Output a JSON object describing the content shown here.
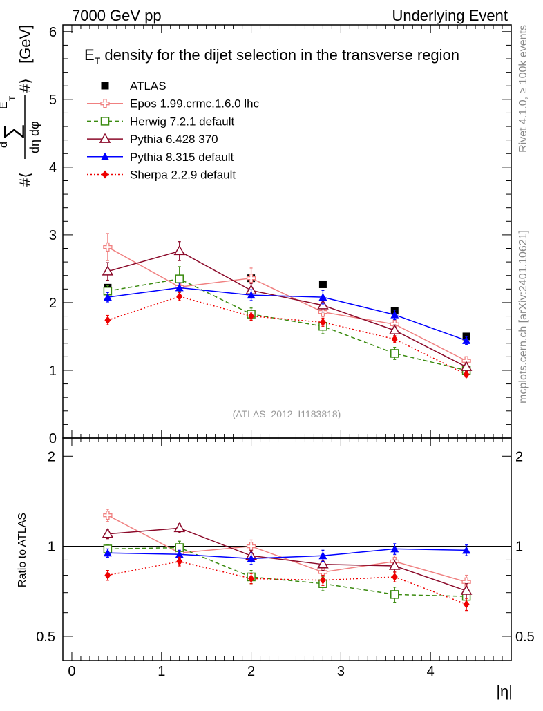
{
  "header": {
    "left": "7000 GeV pp",
    "right": "Underlying Event"
  },
  "side_labels": {
    "rivet": "Rivet 4.1.0, ≥ 100k events",
    "mcplots": "mcplots.cern.ch [arXiv:2401.10621]"
  },
  "chart_data": [
    {
      "type": "line",
      "title_main": "E",
      "title_sub": "T",
      "title_rest": " density  for the dijet selection in the transverse region",
      "ylabel": "#⟨ d∑E_T / dη dφ ⟩ [GeV]",
      "ylabel_parts": {
        "prefix": "#⟨",
        "d": "d",
        "sum": "∑",
        "E": "E",
        "T": "T",
        "hash": "#⟩",
        "den": "dη dφ",
        "unit": "[GeV]"
      },
      "analysis_id": "(ATLAS_2012_I1183818)",
      "xlim": [
        -0.1,
        4.9
      ],
      "ylim": [
        0,
        6.1
      ],
      "y_ticks": [
        0,
        1,
        2,
        3,
        4,
        5,
        6
      ],
      "x": [
        0.4,
        1.2,
        2.0,
        2.8,
        3.6,
        4.4
      ],
      "series": [
        {
          "name": "ATLAS",
          "color": "#000000",
          "marker": "square-filled",
          "dash": "none",
          "line": false,
          "values": [
            2.22,
            2.35,
            2.36,
            2.27,
            1.88,
            1.5
          ],
          "errors": [
            0.03,
            0.03,
            0.03,
            0.03,
            0.02,
            0.02
          ]
        },
        {
          "name": "Epos 1.99.crmc.1.6.0 lhc",
          "color": "#f08080",
          "marker": "cross-open",
          "dash": "none",
          "line": true,
          "values": [
            2.82,
            2.23,
            2.36,
            1.86,
            1.68,
            1.14
          ],
          "errors": [
            0.2,
            0.06,
            0.15,
            0.07,
            0.07,
            0.06
          ]
        },
        {
          "name": "Herwig 7.2.1 default",
          "color": "#3a8a0f",
          "marker": "square-open",
          "dash": "6,4",
          "line": true,
          "values": [
            2.17,
            2.35,
            1.83,
            1.65,
            1.25,
            1.0
          ],
          "errors": [
            0.08,
            0.18,
            0.09,
            0.11,
            0.09,
            0.06
          ]
        },
        {
          "name": "Pythia 6.428 370",
          "color": "#8b0a2a",
          "marker": "triangle-open",
          "dash": "none",
          "line": true,
          "values": [
            2.46,
            2.76,
            2.18,
            1.96,
            1.59,
            1.05
          ],
          "errors": [
            0.13,
            0.14,
            0.1,
            0.1,
            0.08,
            0.06
          ]
        },
        {
          "name": "Pythia 8.315 default",
          "color": "#0000ff",
          "marker": "triangle-filled",
          "dash": "none",
          "line": true,
          "values": [
            2.08,
            2.22,
            2.11,
            2.08,
            1.82,
            1.44
          ],
          "errors": [
            0.07,
            0.07,
            0.08,
            0.1,
            0.07,
            0.06
          ]
        },
        {
          "name": "Sherpa 2.2.9 default",
          "color": "#ee0000",
          "marker": "diamond-filled",
          "dash": "2,3",
          "line": true,
          "values": [
            1.74,
            2.09,
            1.8,
            1.71,
            1.46,
            0.94
          ],
          "errors": [
            0.07,
            0.06,
            0.06,
            0.06,
            0.05,
            0.04
          ]
        }
      ]
    },
    {
      "type": "line",
      "ylabel": "Ratio to ATLAS",
      "xlabel": "|η|",
      "xlim": [
        -0.1,
        4.9
      ],
      "ylim": [
        0.415,
        2.3
      ],
      "yscale": "log",
      "y_ticks": [
        0.5,
        1,
        2
      ],
      "y_tick_labels": [
        "0.5",
        "1",
        "2"
      ],
      "x_ticks": [
        0,
        1,
        2,
        3,
        4
      ],
      "x_tick_labels": [
        "0",
        "1",
        "2",
        "3",
        "4"
      ],
      "reference_line": 1,
      "x": [
        0.4,
        1.2,
        2.0,
        2.8,
        3.6,
        4.4
      ],
      "series": [
        {
          "name": "Epos 1.99.crmc.1.6.0 lhc",
          "color": "#f08080",
          "marker": "cross-open",
          "dash": "none",
          "values": [
            1.27,
            0.95,
            1.0,
            0.82,
            0.89,
            0.76
          ],
          "errors": [
            0.06,
            0.03,
            0.05,
            0.03,
            0.04,
            0.04
          ]
        },
        {
          "name": "Herwig 7.2.1 default",
          "color": "#3a8a0f",
          "marker": "square-open",
          "dash": "6,4",
          "line": true,
          "values": [
            0.98,
            0.99,
            0.79,
            0.75,
            0.69,
            0.68
          ],
          "errors": [
            0.03,
            0.05,
            0.04,
            0.04,
            0.04,
            0.04
          ]
        },
        {
          "name": "Pythia 6.428 370",
          "color": "#8b0a2a",
          "marker": "triangle-open",
          "dash": "none",
          "values": [
            1.1,
            1.15,
            0.93,
            0.87,
            0.86,
            0.71
          ],
          "errors": [
            0.04,
            0.04,
            0.04,
            0.04,
            0.04,
            0.04
          ]
        },
        {
          "name": "Pythia 8.315 default",
          "color": "#0000ff",
          "marker": "triangle-filled",
          "dash": "none",
          "values": [
            0.95,
            0.94,
            0.91,
            0.93,
            0.98,
            0.97
          ],
          "errors": [
            0.03,
            0.03,
            0.04,
            0.04,
            0.04,
            0.04
          ]
        },
        {
          "name": "Sherpa 2.2.9 default",
          "color": "#ee0000",
          "marker": "diamond-filled",
          "dash": "2,3",
          "line": true,
          "values": [
            0.8,
            0.89,
            0.78,
            0.77,
            0.79,
            0.64
          ],
          "errors": [
            0.03,
            0.03,
            0.03,
            0.03,
            0.03,
            0.03
          ]
        }
      ]
    }
  ]
}
